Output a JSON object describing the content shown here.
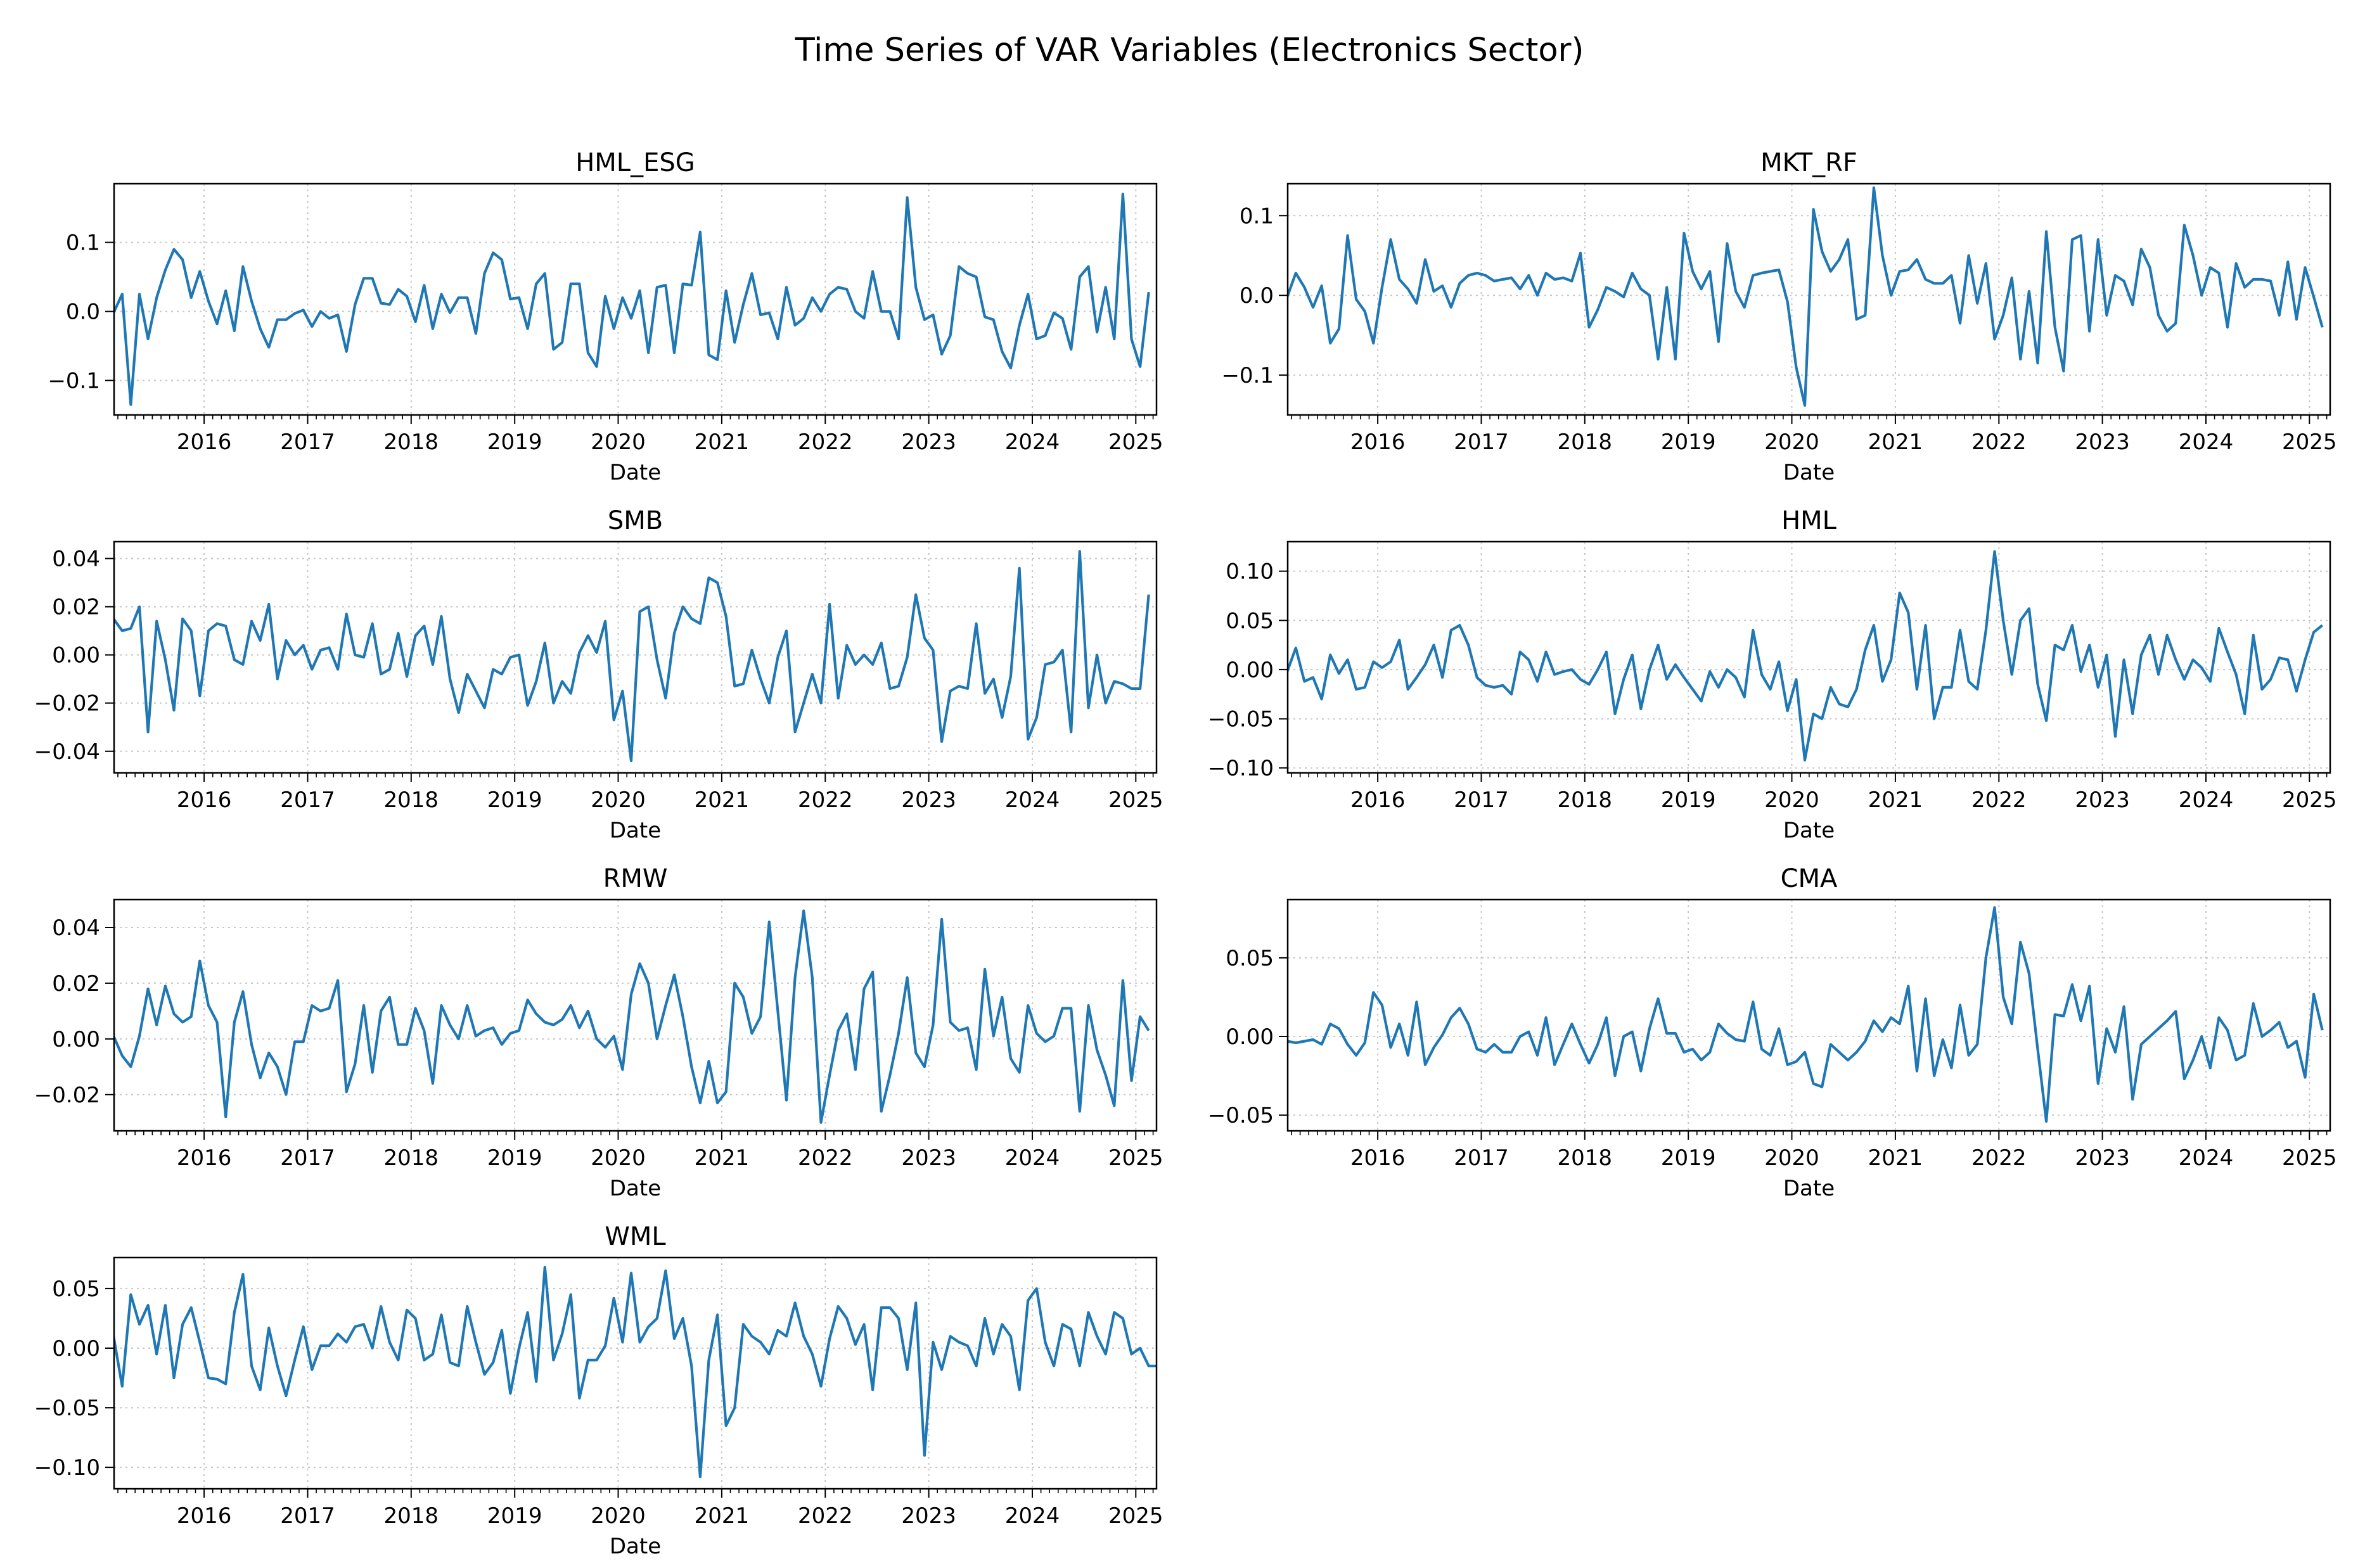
{
  "figure_title": "Time Series of VAR Variables (Electronics Sector)",
  "colors": {
    "line": "#1f77b4",
    "axis": "#000000",
    "grid": "#b0b0b0",
    "text": "#000000"
  },
  "chart_data": [
    {
      "type": "line",
      "title": "HML_ESG",
      "xlabel": "Date",
      "ylabel": "",
      "xlim": [
        2015.13,
        2025.2
      ],
      "ylim": [
        -0.15,
        0.185
      ],
      "yticks": [
        -0.1,
        0.0,
        0.1
      ],
      "ytick_labels": [
        "−0.1",
        "0.0",
        "0.1"
      ],
      "xticks": [
        2016,
        2017,
        2018,
        2019,
        2020,
        2021,
        2022,
        2023,
        2024,
        2025
      ],
      "xtick_labels": [
        "2016",
        "2017",
        "2018",
        "2019",
        "2020",
        "2021",
        "2022",
        "2023",
        "2024",
        "2025"
      ],
      "grid": true,
      "x_start": 2015.125,
      "x_step": 0.0833333,
      "values": [
        -0.002,
        0.025,
        -0.135,
        0.025,
        -0.04,
        0.02,
        0.06,
        0.09,
        0.075,
        0.02,
        0.058,
        0.015,
        -0.018,
        0.03,
        -0.028,
        0.065,
        0.015,
        -0.025,
        -0.052,
        -0.012,
        -0.012,
        -0.003,
        0.002,
        -0.022,
        0.0,
        -0.01,
        -0.005,
        -0.058,
        0.01,
        0.048,
        0.048,
        0.012,
        0.01,
        0.032,
        0.022,
        -0.015,
        0.038,
        -0.025,
        0.025,
        -0.002,
        0.02,
        0.02,
        -0.032,
        0.055,
        0.085,
        0.075,
        0.018,
        0.02,
        -0.025,
        0.04,
        0.055,
        -0.055,
        -0.045,
        0.04,
        0.04,
        -0.06,
        -0.08,
        0.022,
        -0.025,
        0.02,
        -0.01,
        0.03,
        -0.06,
        0.035,
        0.038,
        -0.06,
        0.04,
        0.038,
        0.115,
        -0.063,
        -0.07,
        0.03,
        -0.045,
        0.01,
        0.055,
        -0.005,
        -0.002,
        -0.04,
        0.035,
        -0.02,
        -0.01,
        0.02,
        0.0,
        0.025,
        0.035,
        0.032,
        0.0,
        -0.01,
        0.058,
        0.0,
        0.0,
        -0.04,
        0.165,
        0.035,
        -0.012,
        -0.005,
        -0.062,
        -0.035,
        0.065,
        0.055,
        0.05,
        -0.008,
        -0.012,
        -0.058,
        -0.082,
        -0.02,
        0.025,
        -0.04,
        -0.035,
        -0.002,
        -0.01,
        -0.055,
        0.05,
        0.065,
        -0.03,
        0.035,
        -0.04,
        0.17,
        -0.04,
        -0.08,
        0.028
      ]
    },
    {
      "type": "line",
      "title": "MKT_RF",
      "xlabel": "Date",
      "ylabel": "",
      "xlim": [
        2015.13,
        2025.2
      ],
      "ylim": [
        -0.15,
        0.14
      ],
      "yticks": [
        -0.1,
        0.0,
        0.1
      ],
      "ytick_labels": [
        "−0.1",
        "0.0",
        "0.1"
      ],
      "xticks": [
        2016,
        2017,
        2018,
        2019,
        2020,
        2021,
        2022,
        2023,
        2024,
        2025
      ],
      "xtick_labels": [
        "2016",
        "2017",
        "2018",
        "2019",
        "2020",
        "2021",
        "2022",
        "2023",
        "2024",
        "2025"
      ],
      "grid": true,
      "x_start": 2015.125,
      "x_step": 0.0833333,
      "values": [
        -0.002,
        0.028,
        0.01,
        -0.015,
        0.012,
        -0.06,
        -0.042,
        0.075,
        -0.005,
        -0.02,
        -0.06,
        0.01,
        0.07,
        0.02,
        0.008,
        -0.01,
        0.045,
        0.005,
        0.012,
        -0.015,
        0.015,
        0.025,
        0.028,
        0.025,
        0.018,
        0.02,
        0.022,
        0.008,
        0.025,
        0.0,
        0.028,
        0.02,
        0.022,
        0.018,
        0.053,
        -0.04,
        -0.018,
        0.01,
        0.005,
        -0.002,
        0.028,
        0.008,
        0.0,
        -0.08,
        0.01,
        -0.08,
        0.078,
        0.03,
        0.008,
        0.03,
        -0.058,
        0.065,
        0.005,
        -0.015,
        0.025,
        0.028,
        0.03,
        0.032,
        -0.008,
        -0.09,
        -0.138,
        0.108,
        0.055,
        0.03,
        0.045,
        0.07,
        -0.03,
        -0.025,
        0.135,
        0.05,
        0.0,
        0.03,
        0.032,
        0.045,
        0.02,
        0.015,
        0.015,
        0.025,
        -0.035,
        0.05,
        -0.01,
        0.04,
        -0.055,
        -0.025,
        0.022,
        -0.08,
        0.005,
        -0.085,
        0.08,
        -0.04,
        -0.095,
        0.07,
        0.075,
        -0.045,
        0.07,
        -0.025,
        0.025,
        0.018,
        -0.012,
        0.058,
        0.035,
        -0.025,
        -0.045,
        -0.035,
        0.088,
        0.05,
        0.0,
        0.035,
        0.028,
        -0.04,
        0.04,
        0.01,
        0.02,
        0.02,
        0.018,
        -0.025,
        0.042,
        -0.03,
        0.035,
        -0.002,
        -0.04
      ]
    },
    {
      "type": "line",
      "title": "SMB",
      "xlabel": "Date",
      "ylabel": "",
      "xlim": [
        2015.13,
        2025.2
      ],
      "ylim": [
        -0.049,
        0.047
      ],
      "yticks": [
        -0.04,
        -0.02,
        0.0,
        0.02,
        0.04
      ],
      "ytick_labels": [
        "−0.04",
        "−0.02",
        "0.00",
        "0.02",
        "0.04"
      ],
      "xticks": [
        2016,
        2017,
        2018,
        2019,
        2020,
        2021,
        2022,
        2023,
        2024,
        2025
      ],
      "xtick_labels": [
        "2016",
        "2017",
        "2018",
        "2019",
        "2020",
        "2021",
        "2022",
        "2023",
        "2024",
        "2025"
      ],
      "grid": true,
      "x_start": 2015.125,
      "x_step": 0.0833333,
      "values": [
        0.015,
        0.01,
        0.011,
        0.02,
        -0.032,
        0.014,
        -0.002,
        -0.023,
        0.015,
        0.01,
        -0.017,
        0.01,
        0.013,
        0.012,
        -0.002,
        -0.004,
        0.014,
        0.006,
        0.021,
        -0.01,
        0.006,
        0.0,
        0.004,
        -0.006,
        0.002,
        0.003,
        -0.006,
        0.017,
        0.0,
        -0.001,
        0.013,
        -0.008,
        -0.006,
        0.009,
        -0.009,
        0.008,
        0.012,
        -0.004,
        0.016,
        -0.01,
        -0.024,
        -0.008,
        -0.015,
        -0.022,
        -0.006,
        -0.008,
        -0.001,
        0.0,
        -0.021,
        -0.011,
        0.005,
        -0.02,
        -0.011,
        -0.016,
        0.001,
        0.008,
        0.001,
        0.014,
        -0.027,
        -0.015,
        -0.044,
        0.018,
        0.02,
        -0.002,
        -0.018,
        0.009,
        0.02,
        0.015,
        0.013,
        0.032,
        0.03,
        0.016,
        -0.013,
        -0.012,
        0.002,
        -0.01,
        -0.02,
        -0.001,
        0.01,
        -0.032,
        -0.02,
        -0.008,
        -0.02,
        0.021,
        -0.018,
        0.004,
        -0.004,
        0.0,
        -0.004,
        0.005,
        -0.014,
        -0.013,
        -0.001,
        0.025,
        0.007,
        0.002,
        -0.036,
        -0.015,
        -0.013,
        -0.014,
        0.013,
        -0.016,
        -0.01,
        -0.026,
        -0.009,
        0.036,
        -0.035,
        -0.026,
        -0.004,
        -0.003,
        0.002,
        -0.032,
        0.043,
        -0.022,
        0.0,
        -0.02,
        -0.011,
        -0.012,
        -0.014,
        -0.014,
        0.025
      ]
    },
    {
      "type": "line",
      "title": "HML",
      "xlabel": "Date",
      "ylabel": "",
      "xlim": [
        2015.13,
        2025.2
      ],
      "ylim": [
        -0.105,
        0.13
      ],
      "yticks": [
        -0.1,
        -0.05,
        0.0,
        0.05,
        0.1
      ],
      "ytick_labels": [
        "−0.10",
        "−0.05",
        "0.00",
        "0.05",
        "0.10"
      ],
      "xticks": [
        2016,
        2017,
        2018,
        2019,
        2020,
        2021,
        2022,
        2023,
        2024,
        2025
      ],
      "xtick_labels": [
        "2016",
        "2017",
        "2018",
        "2019",
        "2020",
        "2021",
        "2022",
        "2023",
        "2024",
        "2025"
      ],
      "grid": true,
      "x_start": 2015.125,
      "x_step": 0.0833333,
      "values": [
        -0.002,
        0.022,
        -0.012,
        -0.008,
        -0.03,
        0.015,
        -0.004,
        0.01,
        -0.02,
        -0.018,
        0.008,
        0.002,
        0.008,
        0.03,
        -0.02,
        -0.008,
        0.005,
        0.025,
        -0.008,
        0.04,
        0.045,
        0.025,
        -0.008,
        -0.016,
        -0.018,
        -0.016,
        -0.025,
        0.018,
        0.01,
        -0.012,
        0.018,
        -0.005,
        -0.002,
        0.0,
        -0.01,
        -0.015,
        0.0,
        0.018,
        -0.045,
        -0.01,
        0.015,
        -0.04,
        0.0,
        0.025,
        -0.01,
        0.005,
        -0.008,
        -0.02,
        -0.032,
        -0.002,
        -0.018,
        0.0,
        -0.008,
        -0.028,
        0.04,
        -0.005,
        -0.02,
        0.008,
        -0.042,
        -0.01,
        -0.092,
        -0.045,
        -0.05,
        -0.018,
        -0.035,
        -0.038,
        -0.02,
        0.02,
        0.045,
        -0.012,
        0.01,
        0.078,
        0.058,
        -0.02,
        0.045,
        -0.05,
        -0.018,
        -0.018,
        0.04,
        -0.012,
        -0.02,
        0.04,
        0.12,
        0.05,
        -0.005,
        0.05,
        0.062,
        -0.015,
        -0.052,
        0.025,
        0.02,
        0.045,
        -0.002,
        0.025,
        -0.018,
        0.015,
        -0.068,
        0.01,
        -0.045,
        0.015,
        0.035,
        -0.005,
        0.035,
        0.01,
        -0.01,
        0.01,
        0.002,
        -0.012,
        0.042,
        0.018,
        -0.005,
        -0.045,
        0.035,
        -0.02,
        -0.01,
        0.012,
        0.01,
        -0.022,
        0.01,
        0.038,
        0.045
      ]
    },
    {
      "type": "line",
      "title": "RMW",
      "xlabel": "Date",
      "ylabel": "",
      "xlim": [
        2015.13,
        2025.2
      ],
      "ylim": [
        -0.033,
        0.05
      ],
      "yticks": [
        -0.02,
        0.0,
        0.02,
        0.04
      ],
      "ytick_labels": [
        "−0.02",
        "0.00",
        "0.02",
        "0.04"
      ],
      "xticks": [
        2016,
        2017,
        2018,
        2019,
        2020,
        2021,
        2022,
        2023,
        2024,
        2025
      ],
      "xtick_labels": [
        "2016",
        "2017",
        "2018",
        "2019",
        "2020",
        "2021",
        "2022",
        "2023",
        "2024",
        "2025"
      ],
      "grid": true,
      "x_start": 2015.125,
      "x_step": 0.0833333,
      "values": [
        0.001,
        -0.006,
        -0.01,
        0.001,
        0.018,
        0.005,
        0.019,
        0.009,
        0.006,
        0.008,
        0.028,
        0.012,
        0.006,
        -0.028,
        0.006,
        0.017,
        -0.002,
        -0.014,
        -0.005,
        -0.01,
        -0.02,
        -0.001,
        -0.001,
        0.012,
        0.01,
        0.011,
        0.021,
        -0.019,
        -0.009,
        0.012,
        -0.012,
        0.01,
        0.015,
        -0.002,
        -0.002,
        0.011,
        0.003,
        -0.016,
        0.012,
        0.005,
        0.0,
        0.012,
        0.001,
        0.003,
        0.004,
        -0.002,
        0.002,
        0.003,
        0.014,
        0.009,
        0.006,
        0.005,
        0.007,
        0.012,
        0.004,
        0.01,
        0.0,
        -0.003,
        0.001,
        -0.011,
        0.016,
        0.027,
        0.02,
        0.0,
        0.012,
        0.023,
        0.008,
        -0.01,
        -0.023,
        -0.008,
        -0.023,
        -0.019,
        0.02,
        0.015,
        0.002,
        0.008,
        0.042,
        0.01,
        -0.022,
        0.022,
        0.046,
        0.022,
        -0.03,
        -0.013,
        0.003,
        0.009,
        -0.011,
        0.018,
        0.024,
        -0.026,
        -0.013,
        0.002,
        0.022,
        -0.005,
        -0.01,
        0.005,
        0.043,
        0.006,
        0.003,
        0.004,
        -0.011,
        0.025,
        0.001,
        0.015,
        -0.007,
        -0.012,
        0.012,
        0.002,
        -0.001,
        0.001,
        0.011,
        0.011,
        -0.026,
        0.012,
        -0.004,
        -0.013,
        -0.024,
        0.021,
        -0.015,
        0.008,
        0.003
      ]
    },
    {
      "type": "line",
      "title": "CMA",
      "xlabel": "Date",
      "ylabel": "",
      "xlim": [
        2015.13,
        2025.2
      ],
      "ylim": [
        -0.06,
        0.087
      ],
      "yticks": [
        -0.05,
        0.0,
        0.05
      ],
      "ytick_labels": [
        "−0.05",
        "0.00",
        "0.05"
      ],
      "xticks": [
        2016,
        2017,
        2018,
        2019,
        2020,
        2021,
        2022,
        2023,
        2024,
        2025
      ],
      "xtick_labels": [
        "2016",
        "2017",
        "2018",
        "2019",
        "2020",
        "2021",
        "2022",
        "2023",
        "2024",
        "2025"
      ],
      "grid": true,
      "x_start": 2015.125,
      "x_step": 0.0833333,
      "values": [
        -0.003,
        -0.004,
        -0.003,
        -0.002,
        -0.005,
        0.008,
        0.005,
        -0.005,
        -0.012,
        -0.004,
        0.028,
        0.02,
        -0.007,
        0.008,
        -0.012,
        0.022,
        -0.018,
        -0.007,
        0.001,
        0.012,
        0.018,
        0.008,
        -0.008,
        -0.01,
        -0.005,
        -0.01,
        -0.01,
        0.0,
        0.003,
        -0.012,
        0.012,
        -0.018,
        -0.005,
        0.008,
        -0.005,
        -0.017,
        -0.005,
        0.012,
        -0.025,
        0.0,
        0.003,
        -0.022,
        0.005,
        0.024,
        0.002,
        0.002,
        -0.01,
        -0.008,
        -0.015,
        -0.01,
        0.008,
        0.002,
        -0.002,
        -0.003,
        0.022,
        -0.008,
        -0.012,
        0.005,
        -0.018,
        -0.016,
        -0.01,
        -0.03,
        -0.032,
        -0.005,
        -0.01,
        -0.015,
        -0.01,
        -0.003,
        0.01,
        0.003,
        0.012,
        0.008,
        0.032,
        -0.022,
        0.024,
        -0.025,
        -0.002,
        -0.02,
        0.02,
        -0.012,
        -0.005,
        0.05,
        0.082,
        0.025,
        0.008,
        0.06,
        0.04,
        -0.008,
        -0.054,
        0.014,
        0.013,
        0.033,
        0.01,
        0.032,
        -0.03,
        0.005,
        -0.01,
        0.019,
        -0.04,
        -0.005,
        0.0,
        0.005,
        0.01,
        0.016,
        -0.027,
        -0.015,
        0.0,
        -0.02,
        0.012,
        0.004,
        -0.015,
        -0.012,
        0.021,
        0.0,
        0.004,
        0.009,
        -0.007,
        -0.003,
        -0.026,
        0.027,
        0.004
      ]
    },
    {
      "type": "line",
      "title": "WML",
      "xlabel": "Date",
      "ylabel": "",
      "xlim": [
        2015.13,
        2025.2
      ],
      "ylim": [
        -0.118,
        0.076
      ],
      "yticks": [
        -0.1,
        -0.05,
        0.0,
        0.05
      ],
      "ytick_labels": [
        "−0.10",
        "−0.05",
        "0.00",
        "0.05"
      ],
      "xticks": [
        2016,
        2017,
        2018,
        2019,
        2020,
        2021,
        2022,
        2023,
        2024,
        2025
      ],
      "xtick_labels": [
        "2016",
        "2017",
        "2018",
        "2019",
        "2020",
        "2021",
        "2022",
        "2023",
        "2024",
        "2025"
      ],
      "grid": true,
      "x_start": 2015.125,
      "x_step": 0.0833333,
      "values": [
        0.01,
        -0.032,
        0.045,
        0.02,
        0.036,
        -0.005,
        0.036,
        -0.025,
        0.02,
        0.034,
        0.005,
        -0.025,
        -0.026,
        -0.03,
        0.03,
        0.062,
        -0.015,
        -0.035,
        0.017,
        -0.015,
        -0.04,
        -0.01,
        0.018,
        -0.018,
        0.002,
        0.002,
        0.012,
        0.005,
        0.018,
        0.02,
        0.0,
        0.035,
        0.005,
        -0.01,
        0.032,
        0.025,
        -0.01,
        -0.005,
        0.028,
        -0.012,
        -0.015,
        0.035,
        0.005,
        -0.022,
        -0.012,
        0.015,
        -0.038,
        0.0,
        0.03,
        -0.028,
        0.068,
        -0.01,
        0.012,
        0.045,
        -0.042,
        -0.01,
        -0.01,
        0.002,
        0.042,
        0.005,
        0.063,
        0.005,
        0.018,
        0.025,
        0.065,
        0.008,
        0.025,
        -0.015,
        -0.108,
        -0.01,
        0.028,
        -0.065,
        -0.05,
        0.02,
        0.01,
        0.005,
        -0.005,
        0.015,
        0.01,
        0.038,
        0.01,
        -0.005,
        -0.032,
        0.008,
        0.035,
        0.025,
        0.003,
        0.02,
        -0.035,
        0.034,
        0.034,
        0.025,
        -0.018,
        0.038,
        -0.09,
        0.005,
        -0.018,
        0.01,
        0.005,
        0.002,
        -0.015,
        0.025,
        -0.005,
        0.02,
        0.01,
        -0.035,
        0.04,
        0.05,
        0.005,
        -0.015,
        0.02,
        0.016,
        -0.015,
        0.03,
        0.01,
        -0.005,
        0.03,
        0.025,
        -0.005,
        0.0,
        -0.015,
        -0.015
      ]
    }
  ]
}
